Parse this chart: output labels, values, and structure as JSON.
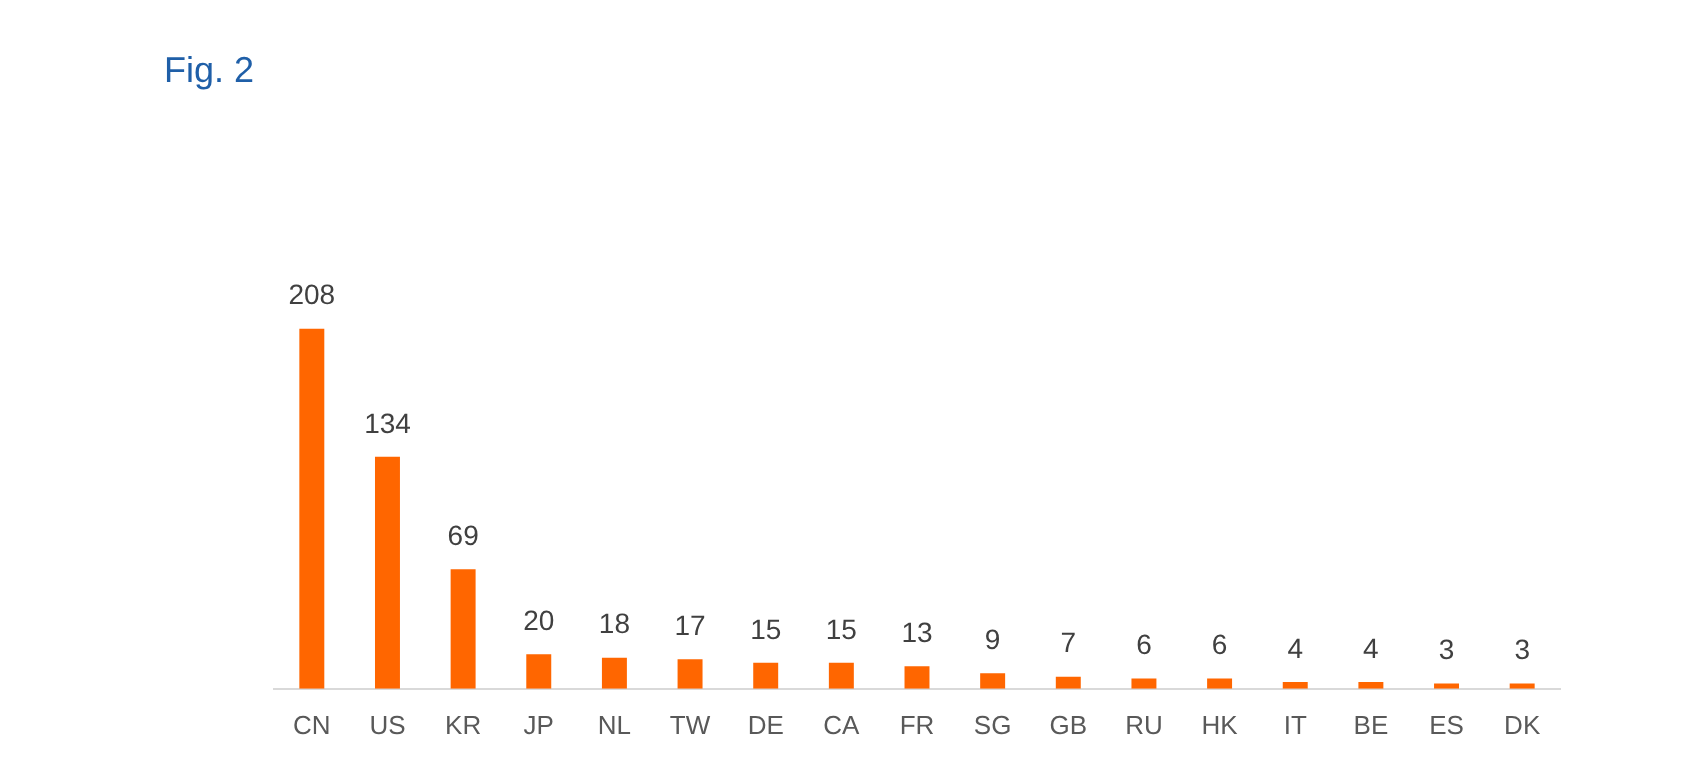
{
  "chart_data": {
    "type": "bar",
    "title": "Fig. 2",
    "categories": [
      "CN",
      "US",
      "KR",
      "JP",
      "NL",
      "TW",
      "DE",
      "CA",
      "FR",
      "SG",
      "GB",
      "RU",
      "HK",
      "IT",
      "BE",
      "ES",
      "DK"
    ],
    "values": [
      208,
      134,
      69,
      20,
      18,
      17,
      15,
      15,
      13,
      9,
      7,
      6,
      6,
      4,
      4,
      3,
      3
    ],
    "color": "#ff6600",
    "data_labels": true
  }
}
